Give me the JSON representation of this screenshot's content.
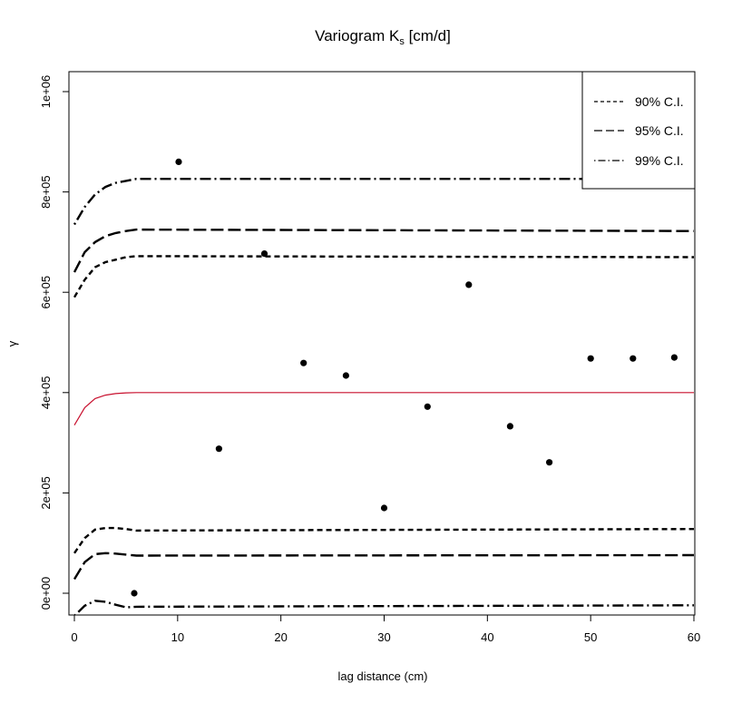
{
  "chart_data": {
    "type": "scatter",
    "title": "Variogram K",
    "title_subscript": "s",
    "title_suffix": " [cm/d]",
    "xlabel": "lag distance (cm)",
    "ylabel": "γ",
    "xlim": [
      0,
      60
    ],
    "ylim": [
      -20000,
      1040000
    ],
    "x_ticks": [
      0,
      10,
      20,
      30,
      40,
      50,
      60
    ],
    "x_tick_labels": [
      "0",
      "10",
      "20",
      "30",
      "40",
      "50",
      "60"
    ],
    "y_ticks": [
      0,
      200000,
      400000,
      600000,
      800000,
      1000000
    ],
    "y_tick_labels": [
      "0e+00",
      "2e+05",
      "4e+05",
      "6e+05",
      "8e+05",
      "1e+06"
    ],
    "grid": false,
    "legend_position": "top-right",
    "legend": [
      {
        "label": "90% C.I.",
        "style": "dashed"
      },
      {
        "label": "95% C.I.",
        "style": "longdash"
      },
      {
        "label": "99% C.I.",
        "style": "dotdash"
      }
    ],
    "points": {
      "x": [
        5.8,
        10.1,
        14.0,
        18.4,
        22.2,
        26.3,
        30.0,
        34.2,
        38.2,
        42.2,
        46.0,
        50.0,
        54.1,
        58.1
      ],
      "y": [
        0,
        860000,
        288000,
        677000,
        459000,
        434000,
        170000,
        372000,
        615000,
        333000,
        261000,
        468000,
        468000,
        470000
      ]
    },
    "series": [
      {
        "name": "model",
        "color": "#c8102e",
        "style": "solid",
        "x": [
          0,
          1,
          2,
          3,
          4,
          5,
          6,
          60
        ],
        "y": [
          335000,
          370000,
          388000,
          395000,
          398000,
          399500,
          400000,
          400000
        ]
      },
      {
        "style": "dashed",
        "band": "90% C.I.",
        "x": [
          0,
          1,
          2,
          3,
          4,
          5,
          6,
          60
        ],
        "y": [
          590000,
          625000,
          650000,
          660000,
          665000,
          670000,
          672000,
          670000
        ]
      },
      {
        "style": "longdash",
        "band": "95% C.I.",
        "x": [
          0,
          1,
          2,
          3,
          4,
          5,
          6,
          60
        ],
        "y": [
          640000,
          680000,
          700000,
          712000,
          718000,
          722000,
          725000,
          722000
        ]
      },
      {
        "style": "dotdash",
        "band": "99% C.I.",
        "x": [
          0,
          1,
          2,
          3,
          4,
          5,
          6,
          60
        ],
        "y": [
          735000,
          770000,
          795000,
          810000,
          818000,
          822000,
          826000,
          826000
        ]
      },
      {
        "style": "dashed",
        "band": "90% C.I.",
        "x": [
          0,
          1,
          2,
          3,
          4,
          5,
          6,
          60
        ],
        "y": [
          80000,
          110000,
          127000,
          130000,
          130000,
          128000,
          125000,
          128000
        ]
      },
      {
        "style": "longdash",
        "band": "95% C.I.",
        "x": [
          0,
          1,
          2,
          3,
          4,
          5,
          6,
          60
        ],
        "y": [
          28000,
          62000,
          78000,
          80000,
          79000,
          77000,
          75000,
          76000
        ]
      },
      {
        "style": "dotdash",
        "band": "99% C.I.",
        "x": [
          0,
          1,
          2,
          3,
          4,
          5,
          6,
          60
        ],
        "y": [
          -45000,
          -25000,
          -15000,
          -17000,
          -23000,
          -28000,
          -27000,
          -24000
        ]
      }
    ]
  }
}
